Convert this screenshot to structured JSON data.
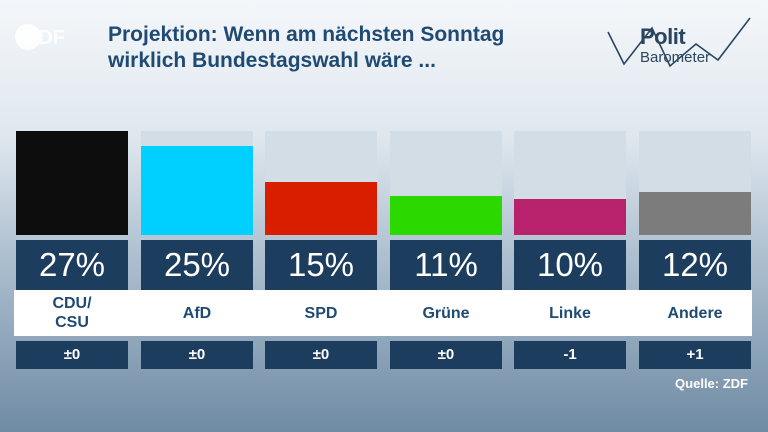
{
  "logo": {
    "text": "ZDF",
    "icon": "zdf-logo-icon"
  },
  "header": {
    "title_line1": "Projektion: Wenn am nächsten Sonntag",
    "title_line2": "wirklich Bundestagswahl wäre ..."
  },
  "brand": {
    "line1": "Polit",
    "line2": "Barometer",
    "icon": "politbarometer-logo-icon"
  },
  "chart_data": {
    "type": "bar",
    "title": "Projektion: Wenn am nächsten Sonntag wirklich Bundestagswahl wäre ...",
    "categories": [
      "CDU/\nCSU",
      "AfD",
      "SPD",
      "Grüne",
      "Linke",
      "Andere"
    ],
    "values": [
      27,
      25,
      15,
      11,
      10,
      12
    ],
    "value_labels": [
      "27%",
      "25%",
      "15%",
      "11%",
      "10%",
      "12%"
    ],
    "changes": [
      "±0",
      "±0",
      "±0",
      "±0",
      "-1",
      "+1"
    ],
    "colors": [
      "#0d0d0d",
      "#00d0ff",
      "#d91e00",
      "#2bd900",
      "#b8226c",
      "#7c7c7c"
    ],
    "ylim": [
      0,
      27
    ],
    "grid": false,
    "legend": "none"
  },
  "footer": {
    "source": "Quelle: ZDF"
  }
}
